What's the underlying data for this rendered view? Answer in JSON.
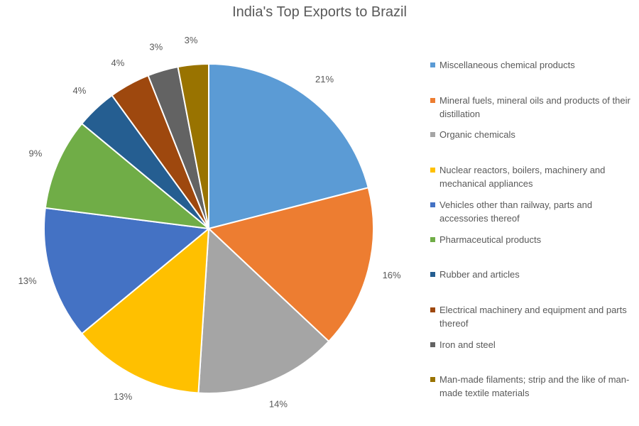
{
  "chart_data": {
    "type": "pie",
    "title": "India's Top Exports to Brazil",
    "slices": [
      {
        "label": "Miscellaneous chemical products",
        "value": 21,
        "data_label": "21%",
        "color": "#5B9BD5"
      },
      {
        "label": "Mineral fuels, mineral oils and products of their distillation",
        "value": 16,
        "data_label": "16%",
        "color": "#ED7D31"
      },
      {
        "label": "Organic chemicals",
        "value": 14,
        "data_label": "14%",
        "color": "#A5A5A5"
      },
      {
        "label": "Nuclear reactors, boilers, machinery and mechanical appliances",
        "value": 13,
        "data_label": "13%",
        "color": "#FFC000"
      },
      {
        "label": "Vehicles other than railway, parts and accessories thereof",
        "value": 13,
        "data_label": "13%",
        "color": "#4472C4"
      },
      {
        "label": "Pharmaceutical products",
        "value": 9,
        "data_label": "9%",
        "color": "#70AD47"
      },
      {
        "label": "Rubber and articles",
        "value": 4,
        "data_label": "4%",
        "color": "#255E91"
      },
      {
        "label": "Electrical machinery and equipment and parts thereof",
        "value": 4,
        "data_label": "4%",
        "color": "#9E480E"
      },
      {
        "label": "Iron and steel",
        "value": 3,
        "data_label": "3%",
        "color": "#636363"
      },
      {
        "label": "Man-made filaments; strip and the like of man-made textile materials",
        "value": 3,
        "data_label": "3%",
        "color": "#997300"
      }
    ],
    "legend_position": "right",
    "start_angle": "top, clockwise"
  }
}
